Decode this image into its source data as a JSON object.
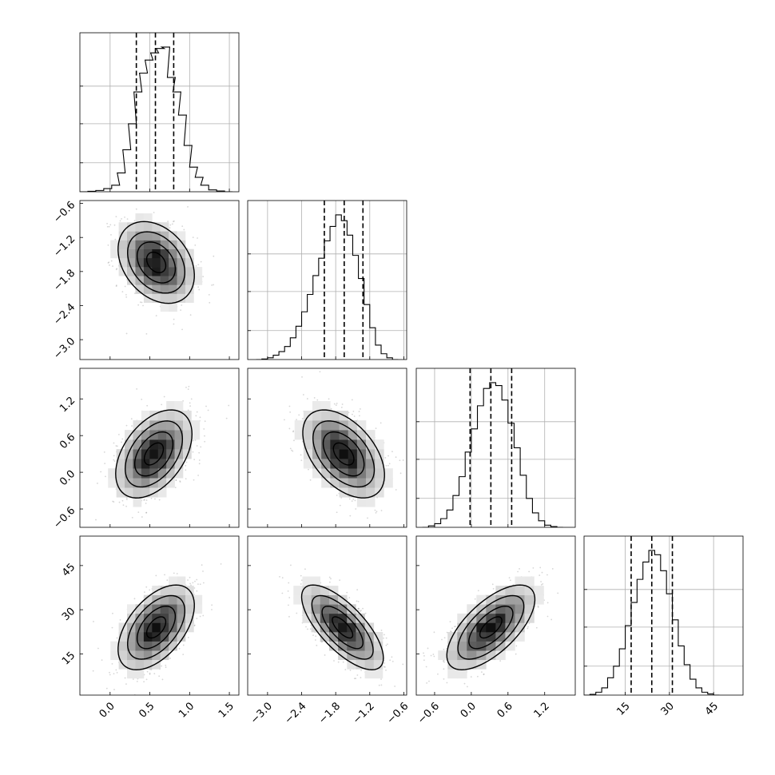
{
  "chart_data": {
    "type": "corner",
    "parameters": [
      {
        "range": [
          -0.38,
          1.62
        ],
        "ticks": [
          0.0,
          0.5,
          1.0,
          1.5
        ],
        "tick_labels": [
          "0.0",
          "0.5",
          "1.0",
          "1.5"
        ],
        "quantiles": [
          0.33,
          0.57,
          0.8
        ],
        "hist": [
          [
            -0.38,
            0.0
          ],
          [
            -0.28,
            0.003
          ],
          [
            -0.18,
            0.009
          ],
          [
            -0.08,
            0.022
          ],
          [
            0.02,
            0.045
          ],
          [
            0.09,
            0.13
          ],
          [
            0.16,
            0.29
          ],
          [
            0.23,
            0.47
          ],
          [
            0.3,
            0.69
          ],
          [
            0.37,
            0.82
          ],
          [
            0.44,
            0.91
          ],
          [
            0.51,
            0.96
          ],
          [
            0.58,
            0.99
          ],
          [
            0.65,
            1.0
          ],
          [
            0.72,
            0.79
          ],
          [
            0.79,
            0.69
          ],
          [
            0.86,
            0.53
          ],
          [
            0.93,
            0.32
          ],
          [
            1.0,
            0.17
          ],
          [
            1.07,
            0.1
          ],
          [
            1.14,
            0.045
          ],
          [
            1.24,
            0.013
          ],
          [
            1.34,
            0.005
          ],
          [
            1.44,
            0.0
          ]
        ]
      },
      {
        "range": [
          -3.35,
          -0.55
        ],
        "ticks": [
          -3.0,
          -2.4,
          -1.8,
          -1.2,
          -0.6
        ],
        "tick_labels": [
          "−3.0",
          "−2.4",
          "−1.8",
          "−1.2",
          "−0.6"
        ],
        "quantiles": [
          -2.0,
          -1.65,
          -1.32
        ],
        "hist": [
          [
            -3.2,
            0.0
          ],
          [
            -3.1,
            0.004
          ],
          [
            -3.0,
            0.012
          ],
          [
            -2.9,
            0.03
          ],
          [
            -2.8,
            0.055
          ],
          [
            -2.7,
            0.09
          ],
          [
            -2.6,
            0.15
          ],
          [
            -2.5,
            0.23
          ],
          [
            -2.4,
            0.33
          ],
          [
            -2.3,
            0.45
          ],
          [
            -2.2,
            0.58
          ],
          [
            -2.1,
            0.7
          ],
          [
            -2.0,
            0.82
          ],
          [
            -1.9,
            0.92
          ],
          [
            -1.8,
            1.0
          ],
          [
            -1.7,
            0.96
          ],
          [
            -1.6,
            0.86
          ],
          [
            -1.5,
            0.72
          ],
          [
            -1.4,
            0.56
          ],
          [
            -1.3,
            0.38
          ],
          [
            -1.2,
            0.22
          ],
          [
            -1.1,
            0.1
          ],
          [
            -1.0,
            0.04
          ],
          [
            -0.9,
            0.012
          ],
          [
            -0.8,
            0.0
          ]
        ]
      },
      {
        "range": [
          -0.9,
          1.7
        ],
        "ticks": [
          -0.6,
          0.0,
          0.6,
          1.2
        ],
        "tick_labels": [
          "−0.6",
          "0.0",
          "0.6",
          "1.2"
        ],
        "quantiles": [
          -0.02,
          0.32,
          0.66
        ],
        "hist": [
          [
            -0.8,
            0.0
          ],
          [
            -0.7,
            0.01
          ],
          [
            -0.6,
            0.025
          ],
          [
            -0.5,
            0.06
          ],
          [
            -0.4,
            0.12
          ],
          [
            -0.3,
            0.22
          ],
          [
            -0.2,
            0.35
          ],
          [
            -0.1,
            0.52
          ],
          [
            0.0,
            0.68
          ],
          [
            0.1,
            0.84
          ],
          [
            0.2,
            0.96
          ],
          [
            0.3,
            1.0
          ],
          [
            0.4,
            0.98
          ],
          [
            0.5,
            0.88
          ],
          [
            0.6,
            0.72
          ],
          [
            0.7,
            0.55
          ],
          [
            0.8,
            0.36
          ],
          [
            0.9,
            0.2
          ],
          [
            1.0,
            0.1
          ],
          [
            1.1,
            0.045
          ],
          [
            1.2,
            0.015
          ],
          [
            1.3,
            0.005
          ],
          [
            1.4,
            0.0
          ]
        ]
      },
      {
        "range": [
          1,
          55
        ],
        "ticks": [
          15,
          30,
          45
        ],
        "tick_labels": [
          "15",
          "30",
          "45"
        ],
        "quantiles": [
          17,
          24,
          31
        ],
        "hist": [
          [
            1,
            0.0
          ],
          [
            3,
            0.005
          ],
          [
            5,
            0.02
          ],
          [
            7,
            0.05
          ],
          [
            9,
            0.12
          ],
          [
            11,
            0.2
          ],
          [
            13,
            0.32
          ],
          [
            15,
            0.48
          ],
          [
            17,
            0.64
          ],
          [
            19,
            0.8
          ],
          [
            21,
            0.92
          ],
          [
            23,
            1.0
          ],
          [
            25,
            0.97
          ],
          [
            27,
            0.86
          ],
          [
            29,
            0.7
          ],
          [
            31,
            0.52
          ],
          [
            33,
            0.34
          ],
          [
            35,
            0.21
          ],
          [
            37,
            0.11
          ],
          [
            39,
            0.05
          ],
          [
            41,
            0.02
          ],
          [
            43,
            0.008
          ],
          [
            45,
            0.0
          ]
        ]
      }
    ],
    "pairs": [
      {
        "x": 0,
        "y": 1,
        "mean": [
          0.58,
          -1.64
        ],
        "sd": [
          0.24,
          0.36
        ],
        "rho": -0.32
      },
      {
        "x": 0,
        "y": 2,
        "mean": [
          0.55,
          0.3
        ],
        "sd": [
          0.24,
          0.36
        ],
        "rho": 0.45
      },
      {
        "x": 1,
        "y": 2,
        "mean": [
          -1.66,
          0.3
        ],
        "sd": [
          0.36,
          0.36
        ],
        "rho": -0.48
      },
      {
        "x": 0,
        "y": 3,
        "mean": [
          0.58,
          24.0
        ],
        "sd": [
          0.24,
          7.2
        ],
        "rho": 0.52
      },
      {
        "x": 1,
        "y": 3,
        "mean": [
          -1.68,
          24.0
        ],
        "sd": [
          0.36,
          7.2
        ],
        "rho": -0.72
      },
      {
        "x": 2,
        "y": 3,
        "mean": [
          0.32,
          24.0
        ],
        "sd": [
          0.36,
          7.2
        ],
        "rho": 0.66
      }
    ],
    "contour_levels_sigma": [
      0.5,
      1.0,
      1.5,
      2.0
    ],
    "colors": {
      "lines": "#000000",
      "grid": "#b0b0b0",
      "points": "#8a8a8a"
    }
  }
}
